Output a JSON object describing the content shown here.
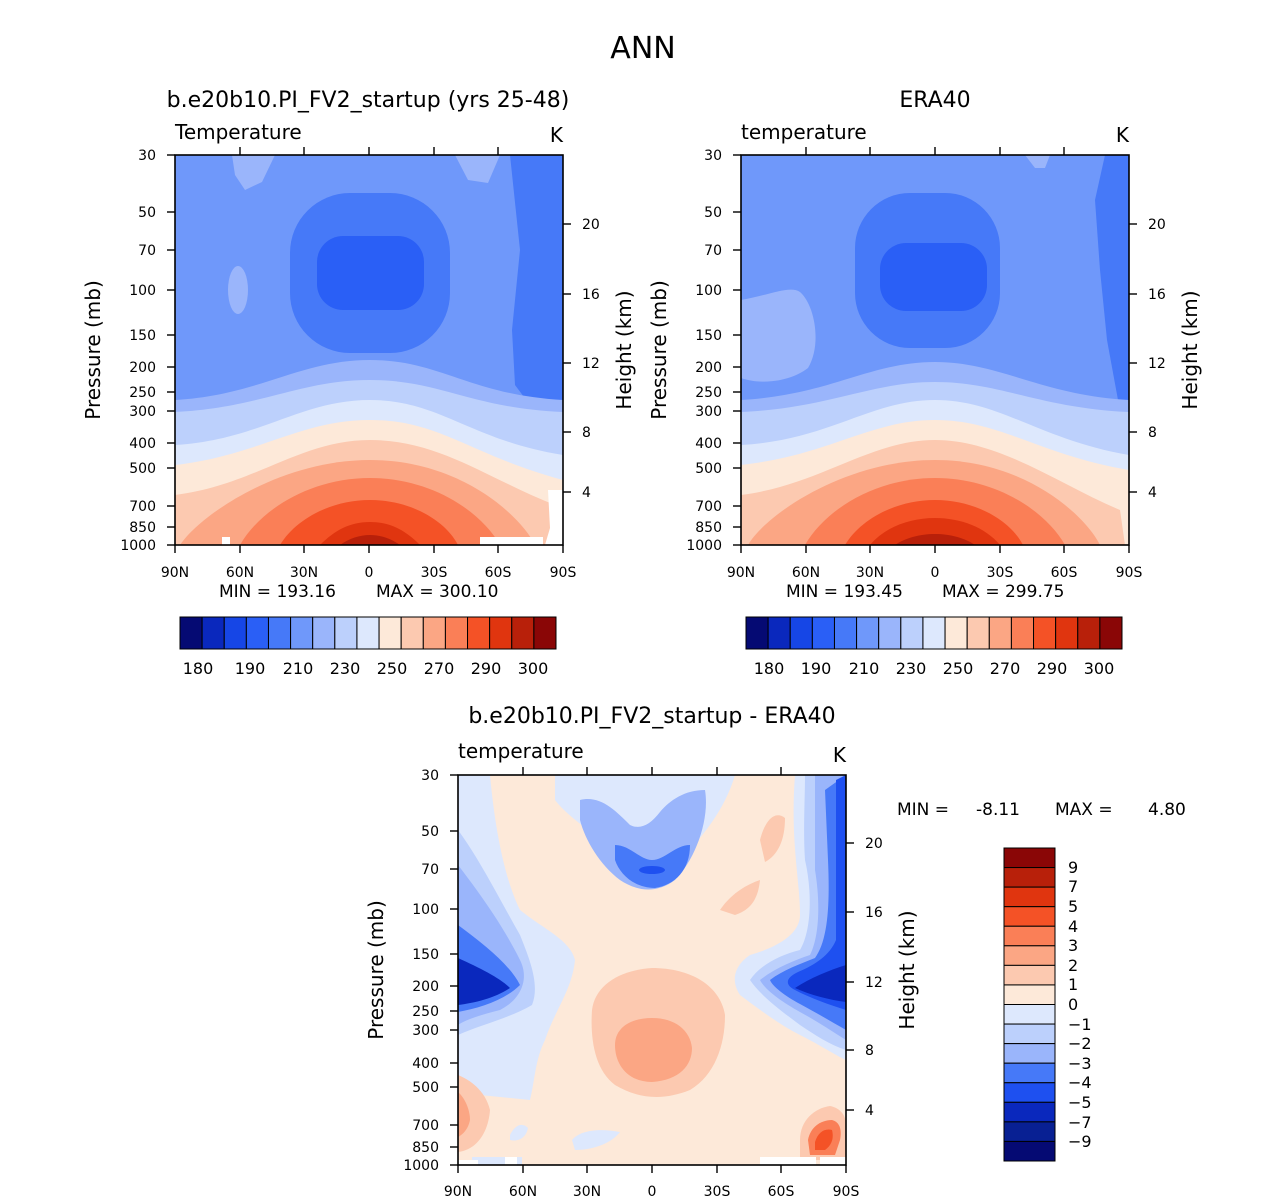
{
  "suptitle": "ANN",
  "chart_data": [
    {
      "type": "heatmap",
      "title": "b.e20b10.PI_FV2_startup (yrs 25-48)",
      "variable": "Temperature",
      "units": "K",
      "ylabel": "Pressure (mb)",
      "ylabel_right": "Height (km)",
      "xticks": [
        "90N",
        "60N",
        "30N",
        "0",
        "30S",
        "60S",
        "90S"
      ],
      "yticks": [
        "30",
        "50",
        "70",
        "100",
        "150",
        "200",
        "250",
        "300",
        "400",
        "500",
        "700",
        "850",
        "1000"
      ],
      "yticks_right": [
        "20",
        "16",
        "12",
        "8",
        "4"
      ],
      "ylim": [
        1000,
        30
      ],
      "min_label": "MIN = 193.16",
      "max_label": "MAX = 300.10",
      "min": 193.16,
      "max": 300.1,
      "colorbar_labels": [
        "180",
        "190",
        "210",
        "230",
        "250",
        "270",
        "290",
        "300"
      ],
      "colorbar_colors": [
        "#050a73",
        "#0a28bd",
        "#1646e6",
        "#2a5ff6",
        "#4679f8",
        "#6f98fa",
        "#9ab5fb",
        "#bcd0fc",
        "#dde8fd",
        "#fde9d9",
        "#fcc9b0",
        "#fba684",
        "#fa7f57",
        "#f45226",
        "#e0350f",
        "#b8200a",
        "#8a0606"
      ]
    },
    {
      "type": "heatmap",
      "title": "ERA40",
      "variable": "temperature",
      "units": "K",
      "ylabel": "Pressure (mb)",
      "ylabel_right": "Height (km)",
      "xticks": [
        "90N",
        "60N",
        "30N",
        "0",
        "30S",
        "60S",
        "90S"
      ],
      "yticks": [
        "30",
        "50",
        "70",
        "100",
        "150",
        "200",
        "250",
        "300",
        "400",
        "500",
        "700",
        "850",
        "1000"
      ],
      "yticks_right": [
        "20",
        "16",
        "12",
        "8",
        "4"
      ],
      "ylim": [
        1000,
        30
      ],
      "min_label": "MIN = 193.45",
      "max_label": "MAX = 299.75",
      "min": 193.45,
      "max": 299.75,
      "colorbar_labels": [
        "180",
        "190",
        "210",
        "230",
        "250",
        "270",
        "290",
        "300"
      ],
      "colorbar_colors": [
        "#050a73",
        "#0a28bd",
        "#1646e6",
        "#2a5ff6",
        "#4679f8",
        "#6f98fa",
        "#9ab5fb",
        "#bcd0fc",
        "#dde8fd",
        "#fde9d9",
        "#fcc9b0",
        "#fba684",
        "#fa7f57",
        "#f45226",
        "#e0350f",
        "#b8200a",
        "#8a0606"
      ]
    },
    {
      "type": "heatmap",
      "title": "b.e20b10.PI_FV2_startup - ERA40",
      "variable": "temperature",
      "units": "K",
      "ylabel": "Pressure (mb)",
      "ylabel_right": "Height (km)",
      "xticks": [
        "90N",
        "60N",
        "30N",
        "0",
        "30S",
        "60S",
        "90S"
      ],
      "yticks": [
        "30",
        "50",
        "70",
        "100",
        "150",
        "200",
        "250",
        "300",
        "400",
        "500",
        "700",
        "850",
        "1000"
      ],
      "yticks_right": [
        "20",
        "16",
        "12",
        "8",
        "4"
      ],
      "ylim": [
        1000,
        30
      ],
      "min_text": "MIN =",
      "min_value": "-8.11",
      "max_text": "MAX =",
      "max_value": "4.80",
      "min": -8.11,
      "max": 4.8,
      "colorbar_labels": [
        "9",
        "7",
        "5",
        "4",
        "3",
        "2",
        "1",
        "0",
        "−1",
        "−2",
        "−3",
        "−4",
        "−5",
        "−7",
        "−9"
      ],
      "colorbar_colors": [
        "#8a0606",
        "#b8200a",
        "#e0350f",
        "#f45226",
        "#fa7f57",
        "#fba684",
        "#fcc9b0",
        "#fde9d9",
        "#dde8fd",
        "#bcd0fc",
        "#9ab5fb",
        "#4679f8",
        "#1e50f0",
        "#0a28bd",
        "#082093",
        "#050a73"
      ]
    }
  ]
}
